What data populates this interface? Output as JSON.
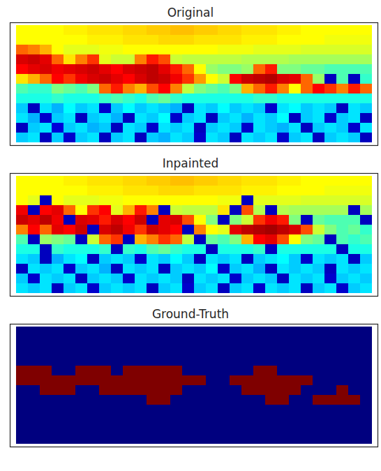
{
  "chart_data": [
    {
      "type": "heatmap",
      "title": "Original",
      "tick_labels": false,
      "color_range": [
        0,
        1
      ],
      "cells": [
        [
          0.6,
          0.6,
          0.6,
          0.6,
          0.61,
          0.61,
          0.62,
          0.62,
          0.62,
          0.63,
          0.63,
          0.64,
          0.64,
          0.65,
          0.65,
          0.64,
          0.64,
          0.63,
          0.63,
          0.62,
          0.62,
          0.62,
          0.61,
          0.61,
          0.6,
          0.6,
          0.6,
          0.6,
          0.6,
          0.6
        ],
        [
          0.6,
          0.6,
          0.6,
          0.6,
          0.6,
          0.6,
          0.61,
          0.61,
          0.61,
          0.62,
          0.62,
          0.62,
          0.63,
          0.63,
          0.63,
          0.62,
          0.62,
          0.62,
          0.62,
          0.61,
          0.61,
          0.61,
          0.6,
          0.6,
          0.6,
          0.6,
          0.59,
          0.59,
          0.59,
          0.59
        ],
        [
          0.72,
          0.7,
          0.66,
          0.6,
          0.58,
          0.58,
          0.58,
          0.59,
          0.59,
          0.6,
          0.6,
          0.6,
          0.6,
          0.6,
          0.6,
          0.6,
          0.6,
          0.59,
          0.59,
          0.59,
          0.58,
          0.58,
          0.58,
          0.58,
          0.57,
          0.57,
          0.57,
          0.57,
          0.57,
          0.57
        ],
        [
          0.86,
          0.88,
          0.84,
          0.72,
          0.62,
          0.7,
          0.76,
          0.58,
          0.56,
          0.56,
          0.7,
          0.78,
          0.74,
          0.56,
          0.55,
          0.55,
          0.55,
          0.55,
          0.55,
          0.54,
          0.54,
          0.54,
          0.54,
          0.53,
          0.53,
          0.53,
          0.53,
          0.53,
          0.53,
          0.53
        ],
        [
          0.8,
          0.84,
          0.86,
          0.82,
          0.84,
          0.86,
          0.88,
          0.84,
          0.8,
          0.86,
          0.88,
          0.9,
          0.84,
          0.78,
          0.72,
          0.6,
          0.52,
          0.5,
          0.5,
          0.52,
          0.72,
          0.78,
          0.5,
          0.5,
          0.48,
          0.48,
          0.46,
          0.46,
          0.46,
          0.46
        ],
        [
          0.62,
          0.66,
          0.72,
          0.8,
          0.76,
          0.82,
          0.86,
          0.88,
          0.84,
          0.8,
          0.86,
          0.9,
          0.88,
          0.82,
          0.76,
          0.68,
          0.6,
          0.56,
          0.8,
          0.88,
          0.9,
          0.92,
          0.86,
          0.84,
          0.72,
          0.52,
          0.1,
          0.46,
          0.1,
          0.44
        ],
        [
          0.46,
          0.44,
          0.44,
          0.5,
          0.48,
          0.46,
          0.5,
          0.72,
          0.78,
          0.7,
          0.66,
          0.74,
          0.8,
          0.7,
          0.55,
          0.5,
          0.48,
          0.46,
          0.5,
          0.66,
          0.72,
          0.78,
          0.7,
          0.6,
          0.72,
          0.8,
          0.76,
          0.7,
          0.78,
          0.72
        ],
        [
          0.42,
          0.42,
          0.42,
          0.44,
          0.42,
          0.42,
          0.42,
          0.44,
          0.46,
          0.44,
          0.42,
          0.46,
          0.48,
          0.44,
          0.42,
          0.42,
          0.42,
          0.42,
          0.42,
          0.42,
          0.44,
          0.44,
          0.42,
          0.42,
          0.42,
          0.42,
          0.42,
          0.42,
          0.42,
          0.42
        ],
        [
          0.36,
          0.1,
          0.38,
          0.34,
          0.4,
          0.36,
          0.38,
          0.12,
          0.36,
          0.4,
          0.36,
          0.38,
          0.36,
          0.34,
          0.1,
          0.38,
          0.36,
          0.4,
          0.36,
          0.38,
          0.36,
          0.12,
          0.38,
          0.4,
          0.36,
          0.38,
          0.36,
          0.1,
          0.38,
          0.36
        ],
        [
          0.38,
          0.34,
          0.12,
          0.36,
          0.38,
          0.1,
          0.36,
          0.38,
          0.34,
          0.1,
          0.38,
          0.36,
          0.4,
          0.12,
          0.36,
          0.38,
          0.1,
          0.36,
          0.38,
          0.34,
          0.38,
          0.36,
          0.4,
          0.1,
          0.36,
          0.38,
          0.12,
          0.36,
          0.38,
          0.1
        ],
        [
          0.1,
          0.36,
          0.38,
          0.14,
          0.36,
          0.38,
          0.34,
          0.36,
          0.1,
          0.38,
          0.36,
          0.12,
          0.38,
          0.36,
          0.38,
          0.1,
          0.36,
          0.38,
          0.36,
          0.12,
          0.38,
          0.36,
          0.34,
          0.38,
          0.1,
          0.36,
          0.38,
          0.36,
          0.12,
          0.38
        ],
        [
          0.36,
          0.38,
          0.1,
          0.36,
          0.12,
          0.36,
          0.38,
          0.1,
          0.36,
          0.38,
          0.1,
          0.36,
          0.34,
          0.38,
          0.36,
          0.12,
          0.38,
          0.36,
          0.1,
          0.38,
          0.36,
          0.38,
          0.12,
          0.36,
          0.38,
          0.1,
          0.36,
          0.38,
          0.36,
          0.1
        ]
      ]
    },
    {
      "type": "heatmap",
      "title": "Inpainted",
      "tick_labels": false,
      "color_range": [
        0,
        1
      ],
      "cells": [
        [
          0.6,
          0.6,
          0.6,
          0.6,
          0.61,
          0.61,
          0.62,
          0.62,
          0.62,
          0.63,
          0.63,
          0.64,
          0.64,
          0.65,
          0.65,
          0.64,
          0.64,
          0.63,
          0.63,
          0.62,
          0.62,
          0.62,
          0.61,
          0.61,
          0.6,
          0.6,
          0.6,
          0.6,
          0.6,
          0.6
        ],
        [
          0.6,
          0.6,
          0.6,
          0.6,
          0.6,
          0.6,
          0.61,
          0.61,
          0.61,
          0.62,
          0.62,
          0.62,
          0.63,
          0.63,
          0.63,
          0.62,
          0.62,
          0.62,
          0.62,
          0.61,
          0.61,
          0.61,
          0.6,
          0.6,
          0.6,
          0.6,
          0.59,
          0.59,
          0.59,
          0.59
        ],
        [
          0.6,
          0.58,
          0.1,
          0.6,
          0.58,
          0.58,
          0.58,
          0.59,
          0.59,
          0.6,
          0.6,
          0.6,
          0.6,
          0.6,
          0.6,
          0.6,
          0.6,
          0.59,
          0.59,
          0.1,
          0.58,
          0.58,
          0.58,
          0.58,
          0.57,
          0.57,
          0.57,
          0.57,
          0.57,
          0.57
        ],
        [
          0.82,
          0.1,
          0.8,
          0.84,
          0.72,
          0.6,
          0.76,
          0.8,
          0.58,
          0.66,
          0.78,
          0.7,
          0.1,
          0.56,
          0.55,
          0.55,
          0.55,
          0.62,
          0.1,
          0.74,
          0.54,
          0.1,
          0.54,
          0.53,
          0.53,
          0.53,
          0.53,
          0.53,
          0.1,
          0.53
        ],
        [
          0.88,
          0.84,
          0.9,
          0.82,
          0.1,
          0.86,
          0.84,
          0.78,
          0.86,
          0.8,
          0.88,
          0.1,
          0.84,
          0.86,
          0.74,
          0.6,
          0.5,
          0.1,
          0.5,
          0.56,
          0.76,
          0.82,
          0.78,
          0.5,
          0.1,
          0.48,
          0.46,
          0.46,
          0.46,
          0.1
        ],
        [
          0.7,
          0.8,
          0.72,
          0.84,
          0.8,
          0.88,
          0.1,
          0.86,
          0.9,
          0.82,
          0.76,
          0.88,
          0.84,
          0.8,
          0.1,
          0.7,
          0.6,
          0.58,
          0.84,
          0.9,
          0.92,
          0.94,
          0.9,
          0.86,
          0.74,
          0.56,
          0.5,
          0.46,
          0.48,
          0.44
        ],
        [
          0.46,
          0.1,
          0.52,
          0.5,
          0.48,
          0.1,
          0.56,
          0.72,
          0.76,
          0.1,
          0.66,
          0.7,
          0.76,
          0.72,
          0.55,
          0.1,
          0.48,
          0.46,
          0.5,
          0.66,
          0.8,
          0.84,
          0.74,
          0.6,
          0.5,
          0.48,
          0.1,
          0.46,
          0.44,
          0.46
        ],
        [
          0.42,
          0.42,
          0.1,
          0.44,
          0.42,
          0.42,
          0.42,
          0.44,
          0.1,
          0.44,
          0.42,
          0.46,
          0.48,
          0.44,
          0.42,
          0.42,
          0.1,
          0.42,
          0.42,
          0.42,
          0.44,
          0.1,
          0.42,
          0.42,
          0.42,
          0.42,
          0.42,
          0.1,
          0.42,
          0.42
        ],
        [
          0.38,
          0.36,
          0.1,
          0.34,
          0.38,
          0.4,
          0.1,
          0.36,
          0.38,
          0.36,
          0.12,
          0.38,
          0.36,
          0.4,
          0.36,
          0.1,
          0.38,
          0.36,
          0.38,
          0.1,
          0.36,
          0.38,
          0.4,
          0.36,
          0.12,
          0.38,
          0.36,
          0.38,
          0.1,
          0.36
        ],
        [
          0.1,
          0.38,
          0.36,
          0.38,
          0.12,
          0.36,
          0.38,
          0.34,
          0.1,
          0.38,
          0.36,
          0.38,
          0.1,
          0.36,
          0.38,
          0.36,
          0.4,
          0.12,
          0.36,
          0.38,
          0.34,
          0.1,
          0.38,
          0.36,
          0.38,
          0.36,
          0.1,
          0.38,
          0.36,
          0.38
        ],
        [
          0.36,
          0.12,
          0.38,
          0.36,
          0.38,
          0.1,
          0.36,
          0.38,
          0.36,
          0.12,
          0.38,
          0.36,
          0.38,
          0.36,
          0.1,
          0.38,
          0.36,
          0.38,
          0.12,
          0.36,
          0.38,
          0.36,
          0.1,
          0.38,
          0.36,
          0.38,
          0.12,
          0.36,
          0.38,
          0.36
        ],
        [
          0.38,
          0.36,
          0.38,
          0.1,
          0.36,
          0.38,
          0.12,
          0.36,
          0.38,
          0.36,
          0.38,
          0.1,
          0.36,
          0.38,
          0.12,
          0.36,
          0.38,
          0.1,
          0.36,
          0.38,
          0.12,
          0.38,
          0.36,
          0.38,
          0.1,
          0.36,
          0.38,
          0.12,
          0.36,
          0.38
        ]
      ]
    },
    {
      "type": "heatmap",
      "title": "Ground-Truth",
      "tick_labels": false,
      "color_range": [
        0,
        1
      ],
      "cells": [
        [
          0,
          0,
          0,
          0,
          0,
          0,
          0,
          0,
          0,
          0,
          0,
          0,
          0,
          0,
          0,
          0,
          0,
          0,
          0,
          0,
          0,
          0,
          0,
          0,
          0,
          0,
          0,
          0,
          0,
          0
        ],
        [
          0,
          0,
          0,
          0,
          0,
          0,
          0,
          0,
          0,
          0,
          0,
          0,
          0,
          0,
          0,
          0,
          0,
          0,
          0,
          0,
          0,
          0,
          0,
          0,
          0,
          0,
          0,
          0,
          0,
          0
        ],
        [
          0,
          0,
          0,
          0,
          0,
          0,
          0,
          0,
          0,
          0,
          0,
          0,
          0,
          0,
          0,
          0,
          0,
          0,
          0,
          0,
          0,
          0,
          0,
          0,
          0,
          0,
          0,
          0,
          0,
          0
        ],
        [
          0,
          0,
          0,
          0,
          0,
          0,
          0,
          0,
          0,
          0,
          0,
          0,
          0,
          0,
          0,
          0,
          0,
          0,
          0,
          0,
          0,
          0,
          0,
          0,
          0,
          0,
          0,
          0,
          0,
          0
        ],
        [
          1,
          1,
          1,
          0,
          0,
          1,
          1,
          1,
          0,
          1,
          1,
          1,
          1,
          1,
          0,
          0,
          0,
          0,
          0,
          0,
          1,
          1,
          0,
          0,
          0,
          0,
          0,
          0,
          0,
          0
        ],
        [
          1,
          1,
          1,
          1,
          1,
          1,
          1,
          1,
          1,
          1,
          1,
          1,
          1,
          1,
          1,
          1,
          0,
          0,
          1,
          1,
          1,
          1,
          1,
          1,
          1,
          0,
          0,
          0,
          0,
          0
        ],
        [
          0,
          0,
          1,
          1,
          1,
          0,
          0,
          1,
          1,
          1,
          1,
          1,
          1,
          1,
          0,
          0,
          0,
          0,
          0,
          1,
          1,
          1,
          1,
          1,
          0,
          0,
          0,
          1,
          0,
          0
        ],
        [
          0,
          0,
          0,
          0,
          0,
          0,
          0,
          0,
          0,
          0,
          0,
          1,
          1,
          0,
          0,
          0,
          0,
          0,
          0,
          0,
          0,
          1,
          1,
          0,
          0,
          1,
          1,
          1,
          1,
          0
        ],
        [
          0,
          0,
          0,
          0,
          0,
          0,
          0,
          0,
          0,
          0,
          0,
          0,
          0,
          0,
          0,
          0,
          0,
          0,
          0,
          0,
          0,
          0,
          0,
          0,
          0,
          0,
          0,
          0,
          0,
          0
        ],
        [
          0,
          0,
          0,
          0,
          0,
          0,
          0,
          0,
          0,
          0,
          0,
          0,
          0,
          0,
          0,
          0,
          0,
          0,
          0,
          0,
          0,
          0,
          0,
          0,
          0,
          0,
          0,
          0,
          0,
          0
        ],
        [
          0,
          0,
          0,
          0,
          0,
          0,
          0,
          0,
          0,
          0,
          0,
          0,
          0,
          0,
          0,
          0,
          0,
          0,
          0,
          0,
          0,
          0,
          0,
          0,
          0,
          0,
          0,
          0,
          0,
          0
        ],
        [
          0,
          0,
          0,
          0,
          0,
          0,
          0,
          0,
          0,
          0,
          0,
          0,
          0,
          0,
          0,
          0,
          0,
          0,
          0,
          0,
          0,
          0,
          0,
          0,
          0,
          0,
          0,
          0,
          0,
          0
        ]
      ]
    }
  ]
}
